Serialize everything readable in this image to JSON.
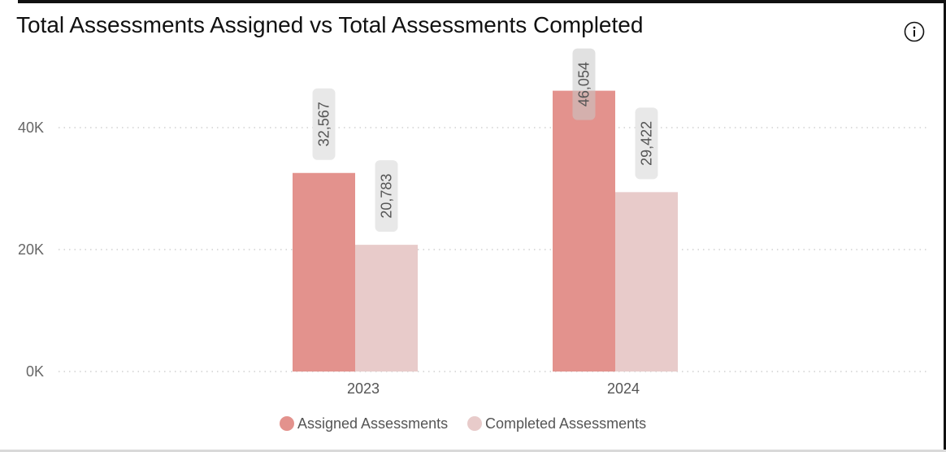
{
  "title": "Total Assessments Assigned vs Total Assessments Completed",
  "info_icon": "info-icon",
  "chart_data": {
    "type": "bar",
    "title": "Total Assessments Assigned vs Total Assessments Completed",
    "categories": [
      "2023",
      "2024"
    ],
    "series": [
      {
        "name": "Assigned Assessments",
        "values": [
          32567,
          46054
        ],
        "labels": [
          "32,567",
          "46,054"
        ],
        "color": "#e3928d"
      },
      {
        "name": "Completed Assessments",
        "values": [
          20783,
          29422
        ],
        "labels": [
          "20,783",
          "29,422"
        ],
        "color": "#e8cbca"
      }
    ],
    "yticks": [
      {
        "value": 0,
        "label": "0K"
      },
      {
        "value": 20000,
        "label": "20K"
      },
      {
        "value": 40000,
        "label": "40K"
      }
    ],
    "ylim": [
      0,
      40000
    ],
    "xlabel": "",
    "ylabel": "",
    "grid": true,
    "legend_position": "bottom-center"
  }
}
